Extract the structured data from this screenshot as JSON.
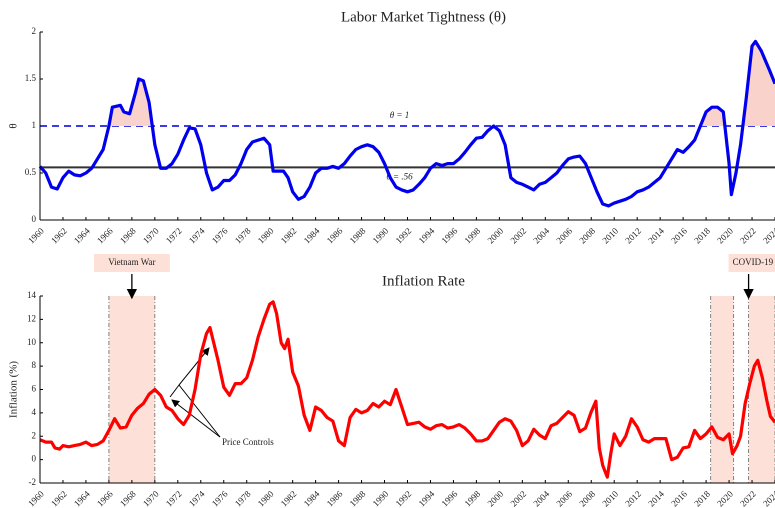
{
  "chart_data": [
    {
      "type": "line",
      "title": "Labor Market Tightness (θ)",
      "y_label": "θ",
      "color": "#0000ee",
      "shade_above": 1,
      "shade_color": "#f9d3cb",
      "xlim": [
        1960,
        2024
      ],
      "xticks": [
        1960,
        1962,
        1964,
        1966,
        1968,
        1970,
        1972,
        1974,
        1976,
        1978,
        1980,
        1982,
        1984,
        1986,
        1988,
        1990,
        1992,
        1994,
        1996,
        1998,
        2000,
        2002,
        2004,
        2006,
        2008,
        2010,
        2012,
        2014,
        2016,
        2018,
        2020,
        2022,
        2024
      ],
      "ylim": [
        0,
        2
      ],
      "yticks": [
        0,
        0.5,
        1,
        1.5,
        2
      ],
      "reference_lines": [
        {
          "value": 1,
          "label": "θ = 1",
          "color": "#3b3bea",
          "style": "dashed"
        },
        {
          "value": 0.56,
          "label": "θ = .56",
          "color": "#333333",
          "style": "solid"
        }
      ],
      "x": [
        1960,
        1960.5,
        1961,
        1961.5,
        1962,
        1962.5,
        1963,
        1963.5,
        1964,
        1964.5,
        1965,
        1965.5,
        1966,
        1966.3,
        1967,
        1967.3,
        1967.8,
        1968.3,
        1968.6,
        1969,
        1969.5,
        1970,
        1970.5,
        1971,
        1971.5,
        1972,
        1972.5,
        1973,
        1973.5,
        1974,
        1974.5,
        1975,
        1975.5,
        1976,
        1976.5,
        1977,
        1977.5,
        1978,
        1978.5,
        1979,
        1979.5,
        1980,
        1980.3,
        1980.8,
        1981.2,
        1981.6,
        1982,
        1982.5,
        1983,
        1983.5,
        1984,
        1984.5,
        1985,
        1985.5,
        1986,
        1986.5,
        1987,
        1987.5,
        1988,
        1988.5,
        1989,
        1989.5,
        1990,
        1990.5,
        1991,
        1991.5,
        1992,
        1992.5,
        1993,
        1993.5,
        1994,
        1994.5,
        1995,
        1995.5,
        1996,
        1996.5,
        1997,
        1997.5,
        1998,
        1998.5,
        1999,
        1999.5,
        2000,
        2000.5,
        2001,
        2001.5,
        2002,
        2002.5,
        2003,
        2003.5,
        2004,
        2004.5,
        2005,
        2005.5,
        2006,
        2006.5,
        2007,
        2007.5,
        2008,
        2008.5,
        2009,
        2009.5,
        2010,
        2010.5,
        2011,
        2011.5,
        2012,
        2012.5,
        2013,
        2013.5,
        2014,
        2014.5,
        2015,
        2015.5,
        2016,
        2016.5,
        2017,
        2017.5,
        2018,
        2018.5,
        2019,
        2019.5,
        2020,
        2020.2,
        2020.6,
        2021,
        2021.5,
        2022,
        2022.3,
        2022.8,
        2023.5,
        2024
      ],
      "values": [
        0.57,
        0.5,
        0.35,
        0.33,
        0.45,
        0.52,
        0.48,
        0.47,
        0.5,
        0.55,
        0.65,
        0.75,
        1.0,
        1.2,
        1.22,
        1.15,
        1.13,
        1.35,
        1.5,
        1.48,
        1.25,
        0.8,
        0.55,
        0.55,
        0.6,
        0.7,
        0.85,
        0.98,
        0.97,
        0.8,
        0.5,
        0.32,
        0.35,
        0.42,
        0.42,
        0.48,
        0.6,
        0.75,
        0.83,
        0.85,
        0.87,
        0.8,
        0.52,
        0.52,
        0.52,
        0.45,
        0.3,
        0.22,
        0.25,
        0.35,
        0.5,
        0.55,
        0.55,
        0.57,
        0.55,
        0.6,
        0.68,
        0.75,
        0.78,
        0.8,
        0.78,
        0.72,
        0.6,
        0.45,
        0.35,
        0.32,
        0.3,
        0.32,
        0.38,
        0.45,
        0.55,
        0.6,
        0.58,
        0.6,
        0.6,
        0.65,
        0.72,
        0.8,
        0.87,
        0.88,
        0.95,
        1.0,
        0.95,
        0.8,
        0.45,
        0.4,
        0.38,
        0.35,
        0.32,
        0.38,
        0.4,
        0.45,
        0.5,
        0.58,
        0.65,
        0.67,
        0.68,
        0.6,
        0.45,
        0.3,
        0.17,
        0.15,
        0.18,
        0.2,
        0.22,
        0.25,
        0.3,
        0.32,
        0.35,
        0.4,
        0.45,
        0.55,
        0.65,
        0.75,
        0.72,
        0.78,
        0.85,
        1.0,
        1.15,
        1.2,
        1.2,
        1.15,
        0.6,
        0.27,
        0.5,
        0.8,
        1.3,
        1.85,
        1.9,
        1.8,
        1.6,
        1.45
      ]
    },
    {
      "type": "line",
      "title": "Inflation Rate",
      "y_label": "Inflation (%)",
      "color": "#ff0000",
      "xlim": [
        1960,
        2024
      ],
      "xticks": [
        1960,
        1962,
        1964,
        1966,
        1968,
        1970,
        1972,
        1974,
        1976,
        1978,
        1980,
        1982,
        1984,
        1986,
        1988,
        1990,
        1992,
        1994,
        1996,
        1998,
        2000,
        2002,
        2004,
        2006,
        2008,
        2010,
        2012,
        2014,
        2016,
        2018,
        2020,
        2022,
        2024
      ],
      "ylim": [
        -2,
        14
      ],
      "yticks": [
        -2,
        0,
        2,
        4,
        6,
        8,
        10,
        12,
        14
      ],
      "bands": [
        {
          "start": 1966,
          "end": 1970,
          "label": "Vietnam War"
        },
        {
          "start": 2018.4,
          "end": 2020.4
        },
        {
          "start": 2021.7,
          "end": 2024,
          "label": "COVID-19"
        }
      ],
      "band_color": "#fde1d8",
      "annotation": "Price Controls",
      "x": [
        1960,
        1960.5,
        1961,
        1961.3,
        1961.7,
        1962,
        1962.5,
        1963,
        1963.5,
        1964,
        1964.5,
        1965,
        1965.5,
        1966,
        1966.5,
        1967,
        1967.5,
        1968,
        1968.5,
        1969,
        1969.5,
        1970,
        1970.5,
        1971,
        1971.5,
        1972,
        1972.5,
        1973,
        1973.5,
        1974,
        1974.5,
        1974.8,
        1975,
        1975.5,
        1976,
        1976.5,
        1977,
        1977.5,
        1978,
        1978.5,
        1979,
        1979.5,
        1980,
        1980.3,
        1980.6,
        1981,
        1981.3,
        1981.6,
        1982,
        1982.5,
        1983,
        1983.5,
        1984,
        1984.5,
        1985,
        1985.5,
        1986,
        1986.5,
        1987,
        1987.5,
        1988,
        1988.5,
        1989,
        1989.5,
        1990,
        1990.5,
        1991,
        1991.5,
        1992,
        1992.5,
        1993,
        1993.5,
        1994,
        1994.5,
        1995,
        1995.5,
        1996,
        1996.5,
        1997,
        1997.5,
        1998,
        1998.5,
        1999,
        1999.5,
        2000,
        2000.5,
        2001,
        2001.5,
        2002,
        2002.5,
        2003,
        2003.5,
        2004,
        2004.5,
        2005,
        2005.5,
        2006,
        2006.5,
        2007,
        2007.5,
        2008,
        2008.4,
        2008.7,
        2009,
        2009.4,
        2009.7,
        2010,
        2010.5,
        2011,
        2011.5,
        2012,
        2012.5,
        2013,
        2013.5,
        2014,
        2014.5,
        2015,
        2015.5,
        2016,
        2016.5,
        2017,
        2017.5,
        2018,
        2018.5,
        2019,
        2019.5,
        2020,
        2020.3,
        2020.7,
        2021,
        2021.4,
        2021.8,
        2022.2,
        2022.5,
        2022.9,
        2023.3,
        2023.6,
        2024
      ],
      "values": [
        1.7,
        1.5,
        1.5,
        1.0,
        0.9,
        1.2,
        1.1,
        1.2,
        1.3,
        1.5,
        1.2,
        1.3,
        1.6,
        2.5,
        3.5,
        2.7,
        2.8,
        3.8,
        4.4,
        4.8,
        5.6,
        6.0,
        5.5,
        4.5,
        4.2,
        3.5,
        3.0,
        3.8,
        6.0,
        9.0,
        10.8,
        11.3,
        10.5,
        8.5,
        6.2,
        5.5,
        6.5,
        6.5,
        7.0,
        8.5,
        10.5,
        12.0,
        13.3,
        13.5,
        12.5,
        10.0,
        9.5,
        10.3,
        7.5,
        6.3,
        3.8,
        2.5,
        4.5,
        4.2,
        3.6,
        3.3,
        1.6,
        1.2,
        3.6,
        4.3,
        4.0,
        4.2,
        4.8,
        4.5,
        5.0,
        4.7,
        6.0,
        4.5,
        3.0,
        3.1,
        3.2,
        2.8,
        2.6,
        2.9,
        3.0,
        2.7,
        2.8,
        3.0,
        2.7,
        2.2,
        1.6,
        1.6,
        1.8,
        2.5,
        3.2,
        3.5,
        3.3,
        2.5,
        1.2,
        1.6,
        2.6,
        2.1,
        1.8,
        2.9,
        3.1,
        3.6,
        4.1,
        3.8,
        2.4,
        2.7,
        4.1,
        5.0,
        1.0,
        -0.5,
        -1.5,
        0.5,
        2.2,
        1.2,
        2.0,
        3.5,
        2.8,
        1.7,
        1.5,
        1.8,
        1.8,
        1.8,
        0.0,
        0.2,
        1.0,
        1.1,
        2.5,
        1.8,
        2.2,
        2.8,
        1.9,
        1.7,
        2.2,
        0.5,
        1.2,
        2.0,
        4.8,
        6.5,
        8.0,
        8.5,
        7.0,
        5.0,
        3.7,
        3.2
      ]
    }
  ]
}
